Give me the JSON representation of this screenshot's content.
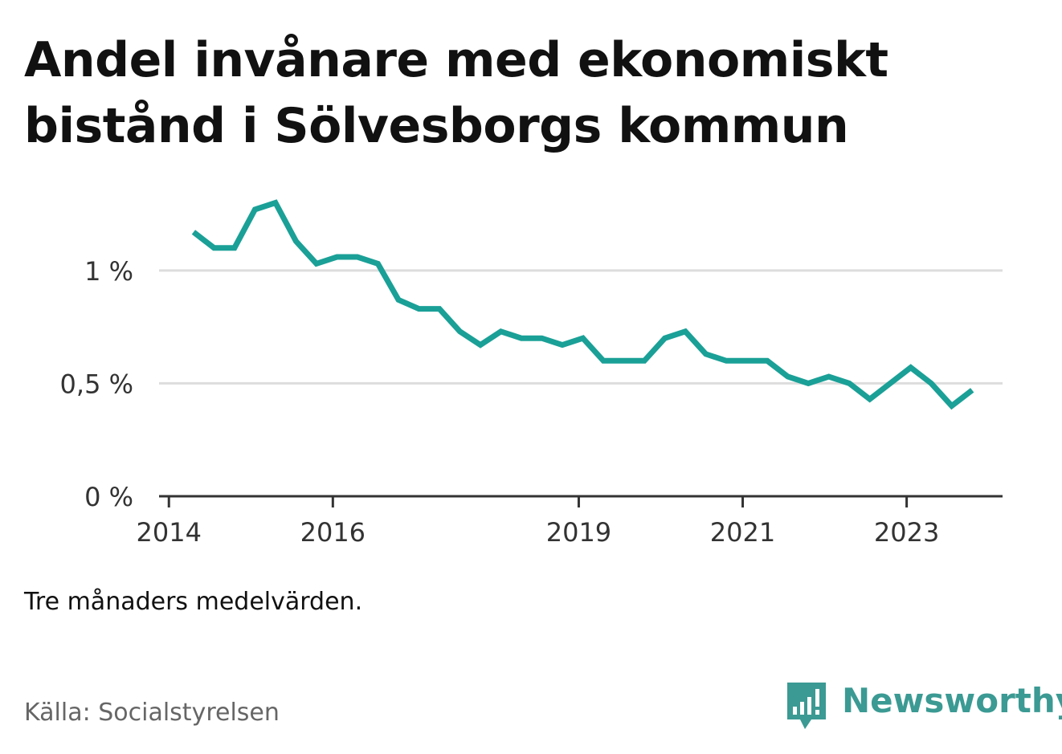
{
  "title": "Andel invånare med ekonomiskt bistånd i Sölvesborgs kommun",
  "note": "Tre månaders medelvärden.",
  "source": "Källa: Socialstyrelsen",
  "brand": {
    "name": "Newsworthy",
    "icon": "newsworthy-logo-icon",
    "color": "#3b9a93"
  },
  "chart_data": {
    "type": "line",
    "title": "Andel invånare med ekonomiskt bistånd i Sölvesborgs kommun",
    "xlabel": "",
    "ylabel": "",
    "x_ticks": [
      2014,
      2016,
      2019,
      2021,
      2023
    ],
    "y_ticks": [
      {
        "value": 0,
        "label": "0 %"
      },
      {
        "value": 0.5,
        "label": "0,5 %"
      },
      {
        "value": 1,
        "label": "1 %"
      }
    ],
    "ylim": [
      0,
      1.38
    ],
    "xlim": [
      2013.88,
      2024.17
    ],
    "grid": true,
    "line_color": "#1aa097",
    "series": [
      {
        "x": [
          2014.3,
          2014.55,
          2014.8,
          2015.05,
          2015.3,
          2015.55,
          2015.8,
          2016.05,
          2016.3,
          2016.55,
          2016.8,
          2017.05,
          2017.3,
          2017.55,
          2017.8,
          2018.05,
          2018.3,
          2018.55,
          2018.8,
          2019.05,
          2019.3,
          2019.55,
          2019.8,
          2020.05,
          2020.3,
          2020.55,
          2020.8,
          2021.05,
          2021.3,
          2021.55,
          2021.8,
          2022.05,
          2022.3,
          2022.55,
          2022.8,
          2023.05,
          2023.3,
          2023.55,
          2023.8
        ],
        "values": [
          1.17,
          1.1,
          1.1,
          1.27,
          1.3,
          1.13,
          1.03,
          1.06,
          1.06,
          1.03,
          0.87,
          0.83,
          0.83,
          0.73,
          0.67,
          0.73,
          0.7,
          0.7,
          0.67,
          0.7,
          0.6,
          0.6,
          0.6,
          0.7,
          0.73,
          0.63,
          0.6,
          0.6,
          0.6,
          0.53,
          0.5,
          0.53,
          0.5,
          0.43,
          0.5,
          0.57,
          0.5,
          0.4,
          0.47
        ]
      }
    ]
  }
}
